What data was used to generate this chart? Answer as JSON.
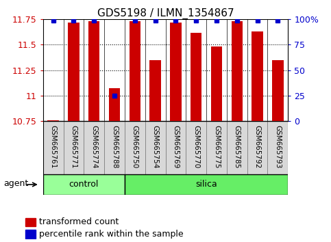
{
  "title": "GDS5198 / ILMN_1354867",
  "samples": [
    "GSM665761",
    "GSM665771",
    "GSM665774",
    "GSM665788",
    "GSM665750",
    "GSM665754",
    "GSM665769",
    "GSM665770",
    "GSM665775",
    "GSM665785",
    "GSM665792",
    "GSM665793"
  ],
  "groups": [
    "control",
    "control",
    "control",
    "control",
    "silica",
    "silica",
    "silica",
    "silica",
    "silica",
    "silica",
    "silica",
    "silica"
  ],
  "transformed_counts": [
    10.76,
    11.72,
    11.73,
    11.07,
    11.73,
    11.35,
    11.72,
    11.62,
    11.48,
    11.73,
    11.63,
    11.35
  ],
  "percentile_ranks": [
    99,
    99,
    99,
    25,
    99,
    99,
    99,
    99,
    99,
    99,
    99,
    99
  ],
  "ylim_left": [
    10.75,
    11.75
  ],
  "ylim_right": [
    0,
    100
  ],
  "yticks_left": [
    10.75,
    11.0,
    11.25,
    11.5,
    11.75
  ],
  "yticks_left_labels": [
    "10.75",
    "11",
    "11.25",
    "11.5",
    "11.75"
  ],
  "yticks_right": [
    0,
    25,
    50,
    75,
    100
  ],
  "yticks_right_labels": [
    "0",
    "25",
    "50",
    "75",
    "100%"
  ],
  "bar_color": "#cc0000",
  "dot_color": "#0000cc",
  "bar_bottom": 10.75,
  "control_color": "#99ff99",
  "silica_color": "#66ee66",
  "agent_label": "agent",
  "legend_bar_label": "transformed count",
  "legend_dot_label": "percentile rank within the sample",
  "title_fontsize": 11,
  "tick_fontsize": 9,
  "sample_fontsize": 7.5,
  "label_fontsize": 9,
  "group_fontsize": 9,
  "n_control": 4,
  "bar_width": 0.55
}
